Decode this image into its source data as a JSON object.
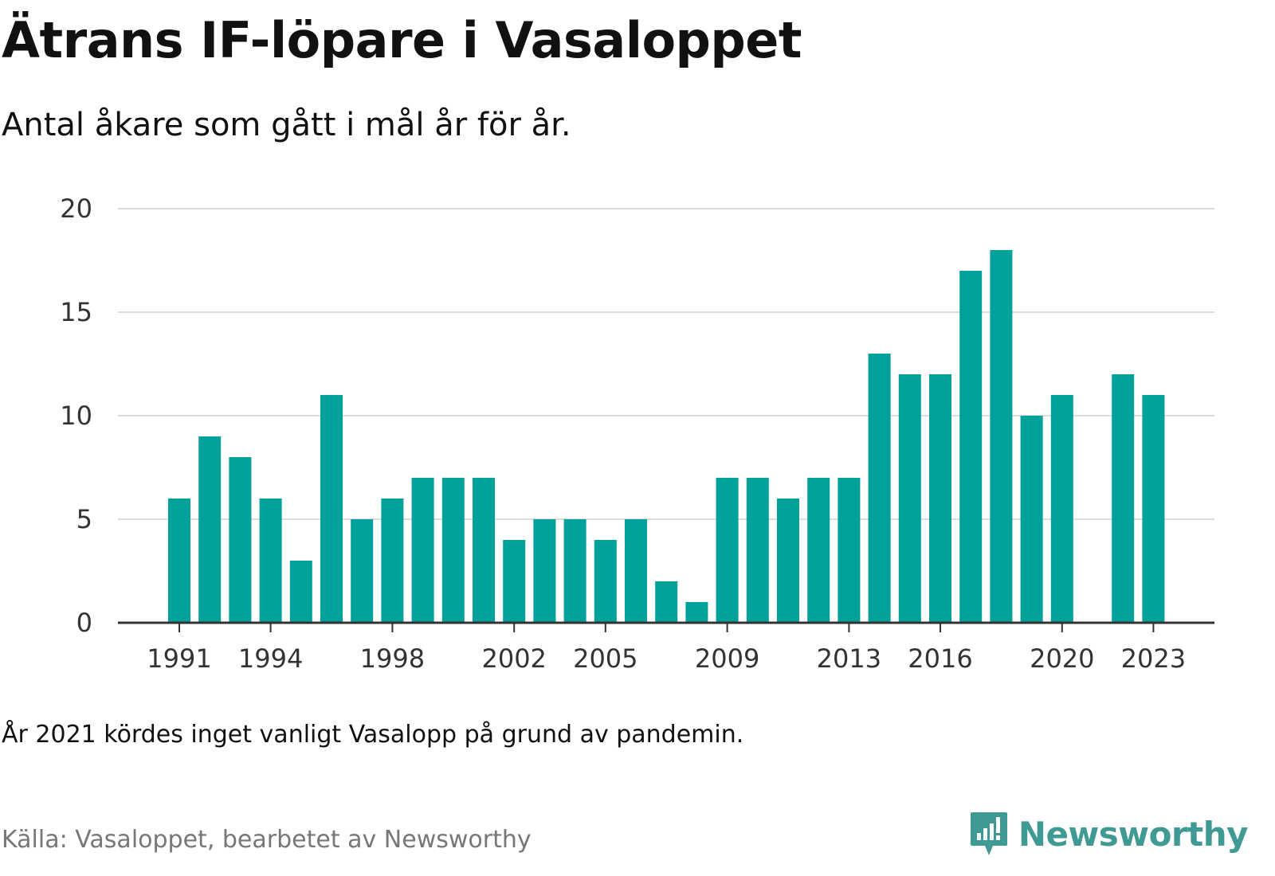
{
  "header": {
    "title": "Ätrans IF-löpare i Vasaloppet",
    "subtitle": "Antal åkare som gått i mål år för år."
  },
  "footer": {
    "note": "År 2021 kördes inget vanligt Vasalopp på grund av pandemin.",
    "source": "Källa: Vasaloppet, bearbetet av Newsworthy",
    "brand": "Newsworthy",
    "brand_icon": "newsworthy-logo-icon"
  },
  "colors": {
    "bar": "#00a19a",
    "grid": "#dddddd",
    "axis": "#333333",
    "brand": "#3e9a92"
  },
  "chart_data": {
    "type": "bar",
    "title": "Ätrans IF-löpare i Vasaloppet",
    "subtitle": "Antal åkare som gått i mål år för år.",
    "xlabel": "",
    "ylabel": "",
    "categories": [
      1991,
      1992,
      1993,
      1994,
      1995,
      1996,
      1997,
      1998,
      1999,
      2000,
      2001,
      2002,
      2003,
      2004,
      2005,
      2006,
      2007,
      2008,
      2009,
      2010,
      2011,
      2012,
      2013,
      2014,
      2015,
      2016,
      2017,
      2018,
      2019,
      2020,
      2021,
      2022,
      2023
    ],
    "values": [
      6,
      9,
      8,
      6,
      3,
      11,
      5,
      6,
      7,
      7,
      7,
      4,
      5,
      5,
      4,
      5,
      2,
      1,
      7,
      7,
      6,
      7,
      7,
      13,
      12,
      12,
      17,
      18,
      10,
      11,
      null,
      12,
      11
    ],
    "x_tick_labels": [
      "1991",
      "1994",
      "1998",
      "2002",
      "2005",
      "2009",
      "2013",
      "2016",
      "2020",
      "2023"
    ],
    "y_ticks": [
      0,
      5,
      10,
      15,
      20
    ],
    "ylim": [
      0,
      20
    ],
    "grid": true,
    "legend": "none"
  }
}
